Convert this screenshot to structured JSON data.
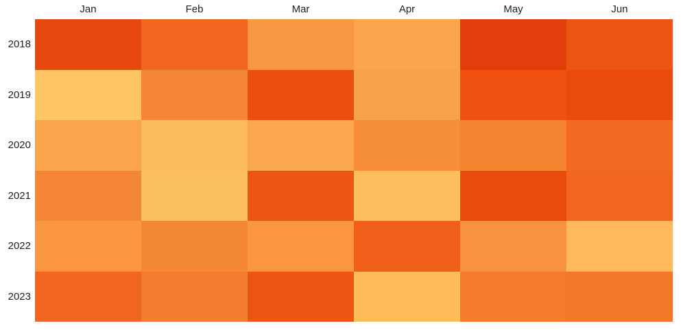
{
  "chart_data": {
    "type": "heatmap",
    "title": "",
    "xlabel": "",
    "ylabel": "",
    "x_labels": [
      "Jan",
      "Feb",
      "Mar",
      "Apr",
      "May",
      "Jun"
    ],
    "y_labels": [
      "2018",
      "2019",
      "2020",
      "2021",
      "2022",
      "2023"
    ],
    "cell_colors": [
      [
        "#E8470E",
        "#F1661E",
        "#F99843",
        "#FBA64D",
        "#E23D0A",
        "#EC5413"
      ],
      [
        "#FDC464",
        "#F58538",
        "#EA4E10",
        "#F9A04A",
        "#EF5010",
        "#EA4A0E"
      ],
      [
        "#FAA44B",
        "#FDBC5C",
        "#FAA74E",
        "#F78E38",
        "#F58430",
        "#F26A22"
      ],
      [
        "#F58638",
        "#FDC061",
        "#ED5514",
        "#FDBE5D",
        "#E94B0F",
        "#F2661F"
      ],
      [
        "#F9963E",
        "#F58834",
        "#F9963E",
        "#F15E19",
        "#F79340",
        "#FDB95B"
      ],
      [
        "#F26521",
        "#F47C2E",
        "#EE5513",
        "#FDBB5A",
        "#F57B2A",
        "#F4772A"
      ]
    ],
    "estimated_intensity_0_100": [
      [
        90,
        74,
        46,
        43,
        97,
        84
      ],
      [
        24,
        60,
        87,
        45,
        85,
        88
      ],
      [
        43,
        29,
        42,
        55,
        61,
        72
      ],
      [
        60,
        26,
        83,
        27,
        88,
        74
      ],
      [
        50,
        59,
        50,
        78,
        52,
        30
      ],
      [
        74,
        65,
        83,
        29,
        66,
        67
      ]
    ],
    "colormap": {
      "low": "#FDC464",
      "high": "#E23D0A",
      "name": "sequential-orange"
    },
    "legend_position": "none",
    "grid": "off",
    "background": "#FFFFFF",
    "label_color": "#212121"
  }
}
